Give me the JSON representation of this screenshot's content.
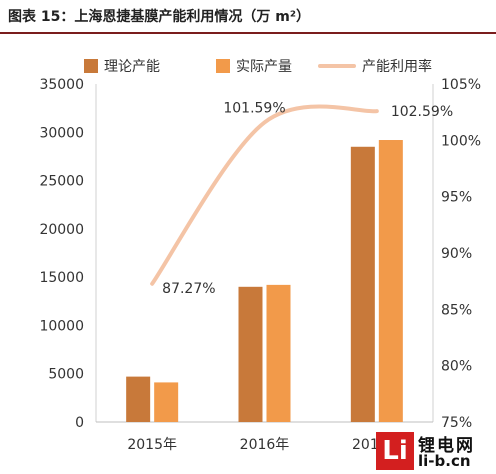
{
  "header": {
    "title": "图表 15：上海恩捷基膜产能利用情况（万 m²）"
  },
  "logo": {
    "mark": "Li",
    "name_cn": "锂电网",
    "url": "li-b.cn"
  },
  "colors": {
    "capacity": "#c8793a",
    "output": "#f29a4a",
    "utilization": "#f4c4a6",
    "title_rule": "#7a1d1d"
  },
  "chart_data": {
    "type": "bar",
    "categories": [
      "2015年",
      "2016年",
      "2017年"
    ],
    "series": [
      {
        "name": "理论产能",
        "kind": "bar",
        "axis": "left",
        "values": [
          4700,
          14000,
          28500
        ]
      },
      {
        "name": "实际产量",
        "kind": "bar",
        "axis": "left",
        "values": [
          4100,
          14200,
          29200
        ]
      },
      {
        "name": "产能利用率",
        "kind": "line",
        "axis": "right",
        "values": [
          87.27,
          101.59,
          102.59
        ],
        "labels": [
          "87.27%",
          "101.59%",
          "102.59%"
        ]
      }
    ],
    "y_left": {
      "min": 0,
      "max": 35000,
      "ticks": [
        0,
        5000,
        10000,
        15000,
        20000,
        25000,
        30000,
        35000
      ]
    },
    "y_right": {
      "min": 75,
      "max": 105,
      "ticks": [
        75,
        80,
        85,
        90,
        95,
        100,
        105
      ],
      "tick_labels": [
        "75%",
        "80%",
        "85%",
        "90%",
        "95%",
        "100%",
        "105%"
      ]
    },
    "title": "",
    "xlabel": "",
    "ylabel": "",
    "grid": false,
    "legend": "top"
  }
}
